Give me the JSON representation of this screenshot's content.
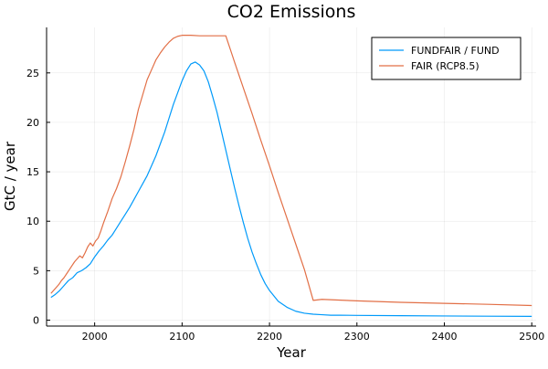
{
  "chart_data": {
    "type": "line",
    "title": "CO2 Emissions",
    "xlabel": "Year",
    "ylabel": "GtC / year",
    "xlim": [
      1945,
      2505
    ],
    "ylim": [
      -0.6,
      29.6
    ],
    "xticks": [
      2000,
      2100,
      2200,
      2300,
      2400,
      2500
    ],
    "yticks": [
      0,
      5,
      10,
      15,
      20,
      25
    ],
    "grid": true,
    "legend_position": "top-right",
    "series": [
      {
        "name": "FUNDFAIR / FUND",
        "color": "#009AFA",
        "x": [
          1950,
          1955,
          1960,
          1965,
          1970,
          1975,
          1980,
          1985,
          1990,
          1995,
          2000,
          2005,
          2010,
          2015,
          2020,
          2025,
          2030,
          2035,
          2040,
          2045,
          2050,
          2055,
          2060,
          2065,
          2070,
          2075,
          2080,
          2085,
          2090,
          2095,
          2100,
          2105,
          2110,
          2115,
          2120,
          2125,
          2130,
          2135,
          2140,
          2145,
          2150,
          2155,
          2160,
          2165,
          2170,
          2175,
          2180,
          2185,
          2190,
          2195,
          2200,
          2210,
          2220,
          2230,
          2240,
          2250,
          2260,
          2270,
          2280,
          2300,
          2350,
          2400,
          2450,
          2500
        ],
        "y": [
          2.3,
          2.6,
          3.0,
          3.5,
          4.0,
          4.3,
          4.8,
          5.0,
          5.3,
          5.7,
          6.4,
          7.0,
          7.5,
          8.1,
          8.6,
          9.3,
          10.0,
          10.7,
          11.4,
          12.2,
          13.0,
          13.8,
          14.6,
          15.6,
          16.6,
          17.8,
          19.0,
          20.4,
          21.8,
          23.0,
          24.2,
          25.2,
          25.9,
          26.1,
          25.8,
          25.2,
          24.1,
          22.6,
          21.0,
          19.1,
          17.2,
          15.3,
          13.4,
          11.6,
          9.9,
          8.3,
          6.9,
          5.7,
          4.6,
          3.7,
          3.0,
          1.9,
          1.3,
          0.9,
          0.7,
          0.6,
          0.55,
          0.5,
          0.5,
          0.48,
          0.45,
          0.42,
          0.4,
          0.38
        ]
      },
      {
        "name": "FAIR (RCP8.5)",
        "color": "#E26F46",
        "x": [
          1950,
          1953,
          1956,
          1959,
          1962,
          1965,
          1968,
          1971,
          1974,
          1977,
          1980,
          1983,
          1986,
          1989,
          1992,
          1995,
          1998,
          2001,
          2004,
          2007,
          2010,
          2015,
          2020,
          2025,
          2030,
          2035,
          2040,
          2045,
          2050,
          2055,
          2060,
          2065,
          2070,
          2075,
          2080,
          2085,
          2090,
          2095,
          2100,
          2110,
          2120,
          2130,
          2140,
          2150,
          2160,
          2170,
          2180,
          2190,
          2200,
          2210,
          2220,
          2230,
          2240,
          2250,
          2260,
          2300,
          2350,
          2400,
          2450,
          2500
        ],
        "y": [
          2.7,
          3.0,
          3.3,
          3.6,
          4.0,
          4.3,
          4.7,
          5.1,
          5.5,
          5.9,
          6.2,
          6.5,
          6.3,
          6.8,
          7.4,
          7.8,
          7.5,
          8.0,
          8.3,
          9.0,
          9.8,
          11.0,
          12.3,
          13.3,
          14.5,
          16.0,
          17.6,
          19.3,
          21.3,
          22.8,
          24.3,
          25.3,
          26.3,
          27.0,
          27.6,
          28.1,
          28.5,
          28.7,
          28.8,
          28.8,
          28.75,
          28.75,
          28.75,
          28.75,
          26.1,
          23.5,
          20.9,
          18.2,
          15.6,
          12.9,
          10.3,
          7.7,
          5.1,
          2.0,
          2.1,
          1.95,
          1.8,
          1.7,
          1.6,
          1.48
        ]
      }
    ]
  }
}
